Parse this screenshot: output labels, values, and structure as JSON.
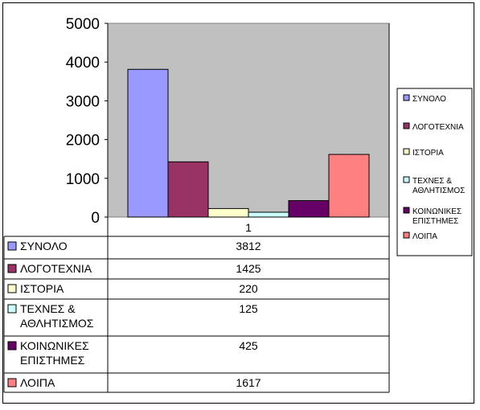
{
  "chart_data": {
    "type": "bar",
    "categories": [
      "1"
    ],
    "series": [
      {
        "name": "ΣΥΝΟΛΟ",
        "values": [
          3812
        ],
        "color": "#9999ff"
      },
      {
        "name": "ΛΟΓΟΤΕΧΝΙΑ",
        "values": [
          1425
        ],
        "color": "#993366"
      },
      {
        "name": "ΙΣΤΟΡΙΑ",
        "values": [
          220
        ],
        "color": "#ffffcc"
      },
      {
        "name": "ΤΕΧΝΕΣ & ΑΘΛΗΤΙΣΜΟΣ",
        "values": [
          125
        ],
        "color": "#ccffff"
      },
      {
        "name": "ΚΟΙΝΩΝΙΚΕΣ ΕΠΙΣΤΗΜΕΣ",
        "values": [
          425
        ],
        "color": "#660066"
      },
      {
        "name": "ΛΟΙΠΑ",
        "values": [
          1617
        ],
        "color": "#ff8080"
      }
    ],
    "yticks": [
      0,
      1000,
      2000,
      3000,
      4000,
      5000
    ],
    "ylim": [
      0,
      5000
    ],
    "plot_background": "#c0c0c0",
    "grid": false,
    "legend": "right",
    "data_table": true,
    "title": "",
    "xlabel": "",
    "ylabel": ""
  }
}
